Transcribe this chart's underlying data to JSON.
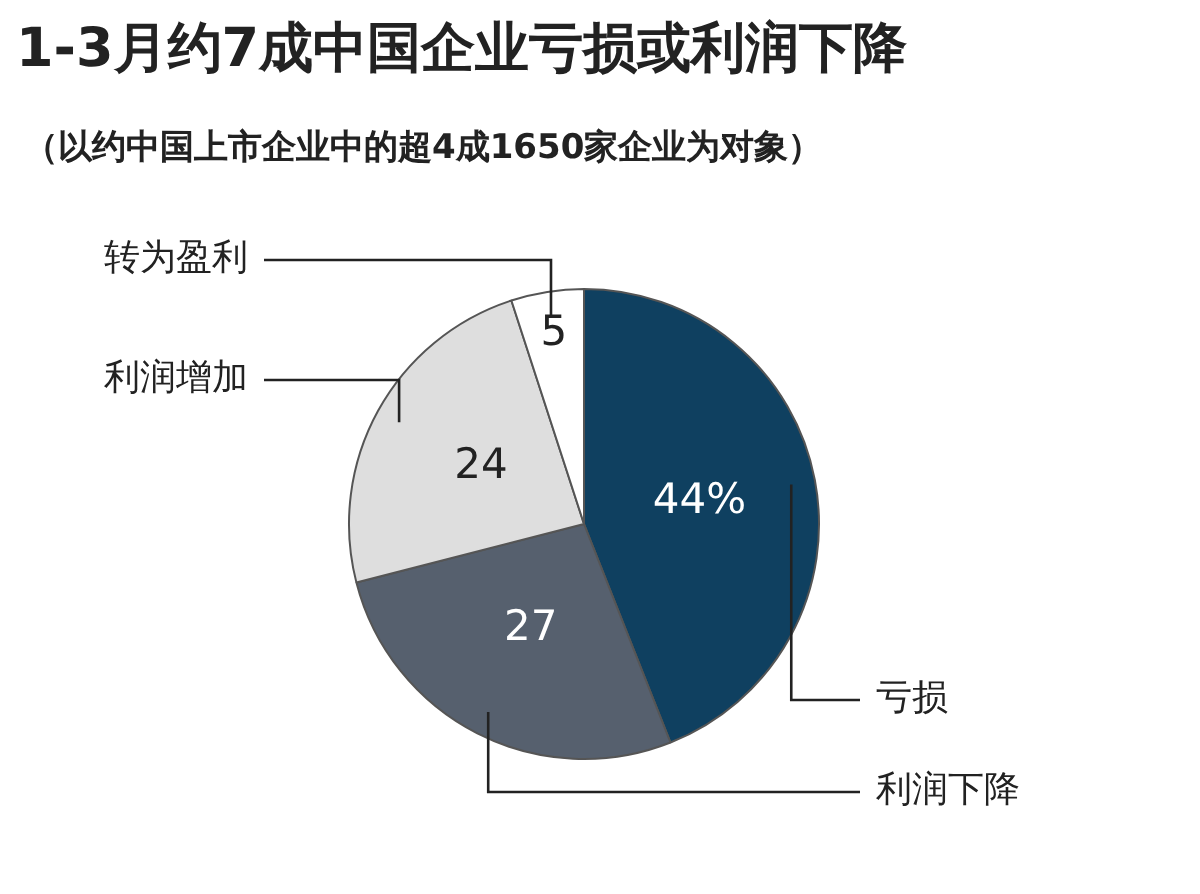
{
  "chart_data": {
    "type": "pie",
    "title": "1-3月约7成中国企业亏损或利润下降",
    "subtitle": "（以约中国上市企业中的超4成1650家企业为对象）",
    "categories": [
      "亏损",
      "利润下降",
      "利润增加",
      "转为盈利"
    ],
    "values": [
      44,
      27,
      24,
      5
    ],
    "colors": [
      "#0f4060",
      "#56606e",
      "#dedede",
      "#ffffff"
    ],
    "value_labels": [
      "44%",
      "27",
      "24",
      "5"
    ],
    "legend": false
  }
}
